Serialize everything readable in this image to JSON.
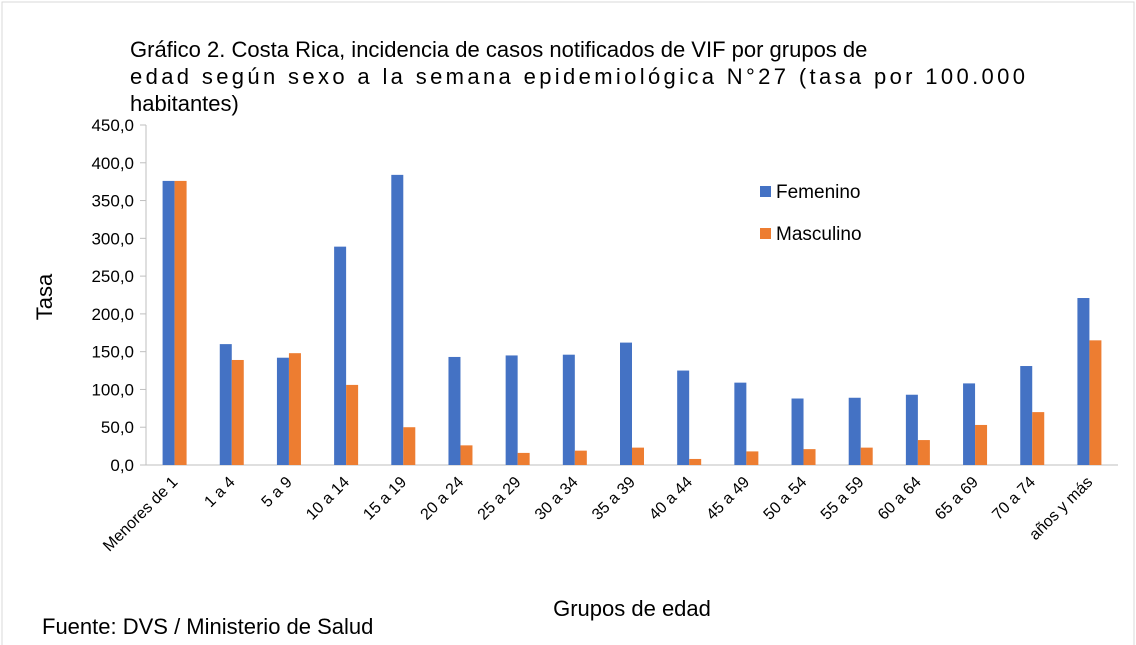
{
  "chart_data": {
    "type": "bar",
    "title_lines": [
      "Gráfico 2. Costa Rica, incidencia de casos notificados de VIF por grupos de",
      "edad según sexo a la semana epidemiológica N°27 (tasa por 100.000",
      "habitantes)"
    ],
    "y_label": "Tasa",
    "x_label": "Grupos de edad",
    "source": "Fuente: DVS / Ministerio de Salud",
    "categories": [
      "Menores de 1",
      "1 a 4",
      "5 a 9",
      "10 a 14",
      "15 a 19",
      "20 a 24",
      "25 a 29",
      "30 a 34",
      "35 a 39",
      "40 a 44",
      "45 a 49",
      "50 a 54",
      "55 a 59",
      "60 a 64",
      "65 a 69",
      "70 a 74",
      "años y más"
    ],
    "series": [
      {
        "name": "Femenino",
        "color": "#4472c4",
        "values": [
          376,
          160,
          142,
          289,
          384,
          143,
          145,
          146,
          162,
          125,
          109,
          88,
          89,
          93,
          108,
          131,
          221
        ]
      },
      {
        "name": "Masculino",
        "color": "#ed7d31",
        "values": [
          376,
          139,
          148,
          106,
          50,
          26,
          16,
          19,
          23,
          8,
          18,
          21,
          23,
          33,
          53,
          70,
          165
        ]
      }
    ],
    "ylim": [
      0,
      450
    ],
    "yticks": [
      {
        "value": 0,
        "label": "0,0"
      },
      {
        "value": 50,
        "label": "50,0"
      },
      {
        "value": 100,
        "label": "100,0"
      },
      {
        "value": 150,
        "label": "150,0"
      },
      {
        "value": 200,
        "label": "200,0"
      },
      {
        "value": 250,
        "label": "250,0"
      },
      {
        "value": 300,
        "label": "300,0"
      },
      {
        "value": 350,
        "label": "350,0"
      },
      {
        "value": 400,
        "label": "400,0"
      },
      {
        "value": 450,
        "label": "450,0"
      }
    ],
    "legend": "upper right"
  }
}
